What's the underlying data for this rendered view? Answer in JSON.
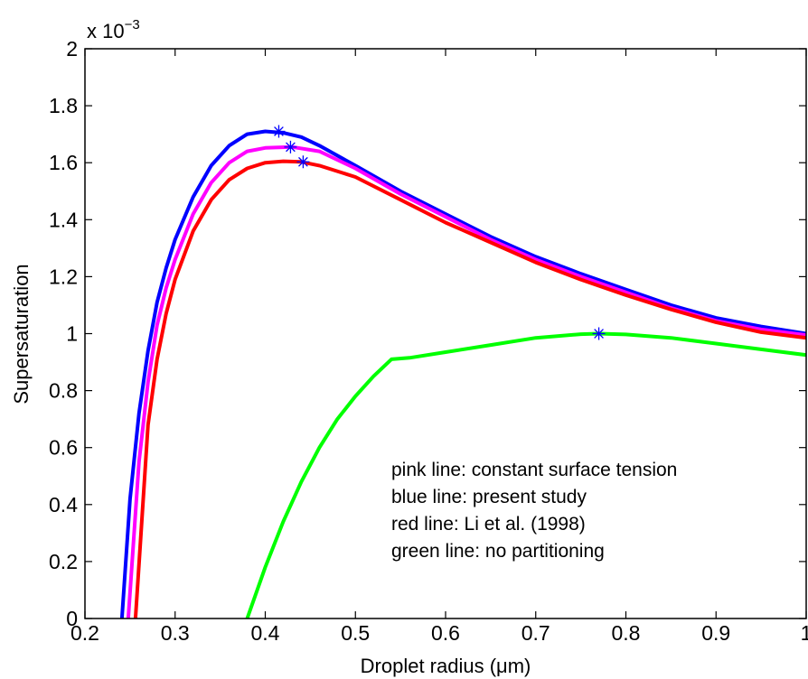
{
  "chart_data": {
    "type": "line",
    "xlabel": "Droplet radius (μm)",
    "ylabel": "Supersaturation",
    "scale_label": "x 10",
    "scale_exponent": "−3",
    "xlim": [
      0.2,
      1.0
    ],
    "ylim": [
      0,
      2
    ],
    "y_unit_multiplier": 0.001,
    "grid": false,
    "xticks": [
      "0.2",
      "0.3",
      "0.4",
      "0.5",
      "0.6",
      "0.7",
      "0.8",
      "0.9",
      "1"
    ],
    "yticks": [
      "0",
      "0.2",
      "0.4",
      "0.6",
      "0.8",
      "1",
      "1.2",
      "1.4",
      "1.6",
      "1.8",
      "2"
    ],
    "annotations": [
      "pink line: constant surface tension",
      "blue line: present study",
      "red line: Li et al. (1998)",
      "green line: no partitioning"
    ],
    "series": [
      {
        "color": "#0000ff",
        "x": [
          0.241,
          0.25,
          0.26,
          0.27,
          0.28,
          0.29,
          0.3,
          0.32,
          0.34,
          0.36,
          0.38,
          0.4,
          0.42,
          0.44,
          0.46,
          0.5,
          0.55,
          0.6,
          0.65,
          0.7,
          0.75,
          0.8,
          0.85,
          0.9,
          0.95,
          1.0
        ],
        "y": [
          0.0,
          0.42,
          0.72,
          0.94,
          1.11,
          1.23,
          1.33,
          1.48,
          1.59,
          1.66,
          1.7,
          1.71,
          1.705,
          1.69,
          1.66,
          1.59,
          1.5,
          1.42,
          1.34,
          1.27,
          1.21,
          1.155,
          1.1,
          1.055,
          1.025,
          1.0
        ],
        "marker": [
          0.415,
          1.71
        ]
      },
      {
        "color": "#ff00ff",
        "x": [
          0.248,
          0.26,
          0.27,
          0.28,
          0.29,
          0.3,
          0.32,
          0.34,
          0.36,
          0.38,
          0.4,
          0.43,
          0.46,
          0.5,
          0.55,
          0.6,
          0.65,
          0.7,
          0.75,
          0.8,
          0.85,
          0.9,
          0.95,
          1.0
        ],
        "y": [
          0.0,
          0.55,
          0.83,
          1.03,
          1.16,
          1.26,
          1.42,
          1.53,
          1.6,
          1.64,
          1.652,
          1.655,
          1.64,
          1.58,
          1.49,
          1.41,
          1.33,
          1.26,
          1.2,
          1.145,
          1.09,
          1.045,
          1.015,
          0.995
        ],
        "marker": [
          0.428,
          1.655
        ]
      },
      {
        "color": "#ff0000",
        "x": [
          0.256,
          0.27,
          0.28,
          0.29,
          0.3,
          0.32,
          0.34,
          0.36,
          0.38,
          0.4,
          0.42,
          0.44,
          0.46,
          0.5,
          0.55,
          0.6,
          0.65,
          0.7,
          0.75,
          0.8,
          0.85,
          0.9,
          0.95,
          1.0
        ],
        "y": [
          0.0,
          0.68,
          0.91,
          1.07,
          1.19,
          1.36,
          1.47,
          1.54,
          1.58,
          1.6,
          1.605,
          1.603,
          1.59,
          1.55,
          1.47,
          1.39,
          1.32,
          1.25,
          1.19,
          1.135,
          1.085,
          1.04,
          1.005,
          0.985
        ],
        "marker": [
          0.442,
          1.603
        ]
      },
      {
        "color": "#00ff00",
        "x": [
          0.38,
          0.4,
          0.42,
          0.44,
          0.46,
          0.48,
          0.5,
          0.52,
          0.54,
          0.56,
          0.6,
          0.65,
          0.7,
          0.75,
          0.77,
          0.8,
          0.85,
          0.9,
          0.95,
          1.0
        ],
        "y": [
          0.0,
          0.18,
          0.34,
          0.48,
          0.6,
          0.7,
          0.78,
          0.85,
          0.91,
          0.915,
          0.935,
          0.96,
          0.985,
          0.998,
          1.0,
          0.997,
          0.985,
          0.965,
          0.945,
          0.925
        ],
        "marker": [
          0.77,
          1.0
        ]
      }
    ]
  }
}
